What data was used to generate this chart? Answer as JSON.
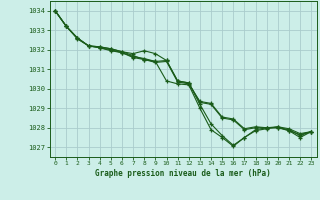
{
  "title": "Graphe pression niveau de la mer (hPa)",
  "bg_color": "#cceee8",
  "grid_color": "#aacccc",
  "line_color": "#1a5c1a",
  "marker_color": "#1a5c1a",
  "xlim": [
    -0.5,
    23.5
  ],
  "ylim": [
    1026.5,
    1034.5
  ],
  "yticks": [
    1027,
    1028,
    1029,
    1030,
    1031,
    1032,
    1033,
    1034
  ],
  "xticks": [
    0,
    1,
    2,
    3,
    4,
    5,
    6,
    7,
    8,
    9,
    10,
    11,
    12,
    13,
    14,
    15,
    16,
    17,
    18,
    19,
    20,
    21,
    22,
    23
  ],
  "series": [
    [
      1034.0,
      1033.2,
      1032.6,
      1032.2,
      1032.15,
      1032.05,
      1031.9,
      1031.8,
      1031.95,
      1031.8,
      1031.45,
      1030.4,
      1030.3,
      1029.2,
      1028.2,
      1027.6,
      1027.1,
      1027.5,
      1027.9,
      1028.0,
      1028.0,
      1027.85,
      1027.5,
      1027.8
    ],
    [
      1034.0,
      1033.2,
      1032.55,
      1032.2,
      1032.1,
      1032.0,
      1031.85,
      1031.65,
      1031.55,
      1031.4,
      1030.4,
      1030.25,
      1030.2,
      1029.0,
      1027.9,
      1027.5,
      1027.05,
      1027.5,
      1027.85,
      1027.95,
      1028.05,
      1027.85,
      1027.65,
      1027.8
    ],
    [
      1034.0,
      1033.2,
      1032.6,
      1032.2,
      1032.15,
      1032.05,
      1031.9,
      1031.7,
      1031.5,
      1031.35,
      1031.4,
      1030.35,
      1030.25,
      1029.35,
      1029.25,
      1028.55,
      1028.45,
      1027.95,
      1028.05,
      1028.0,
      1028.05,
      1027.95,
      1027.7,
      1027.8
    ],
    [
      1034.0,
      1033.2,
      1032.6,
      1032.2,
      1032.1,
      1031.95,
      1031.85,
      1031.6,
      1031.5,
      1031.4,
      1031.45,
      1030.4,
      1030.3,
      1029.3,
      1029.2,
      1028.5,
      1028.4,
      1027.9,
      1028.0,
      1028.0,
      1028.0,
      1027.9,
      1027.6,
      1027.8
    ]
  ]
}
